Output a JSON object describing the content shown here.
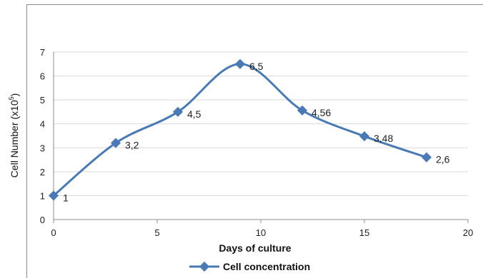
{
  "chart_data": {
    "type": "line",
    "title": "",
    "xlabel": "Days of culture",
    "ylabel": "Cell Number (x10",
    "ylabel_sup": "5",
    "ylabel_close": ")",
    "xlim": [
      0,
      20
    ],
    "ylim": [
      0,
      7
    ],
    "xticks": [
      0,
      5,
      10,
      15,
      20
    ],
    "yticks": [
      0,
      1,
      2,
      3,
      4,
      5,
      6,
      7
    ],
    "grid": "horizontal",
    "legend_position": "bottom",
    "series": [
      {
        "name": "Cell concentration",
        "color": "#4a7ab5",
        "x": [
          0,
          3,
          6,
          9,
          12,
          15,
          18
        ],
        "y": [
          1,
          3.2,
          4.5,
          6.5,
          4.56,
          3.48,
          2.6
        ],
        "labels": [
          "1",
          "3,2",
          "4,5",
          "6,5",
          "4,56",
          "3,48",
          "2,6"
        ]
      }
    ]
  }
}
